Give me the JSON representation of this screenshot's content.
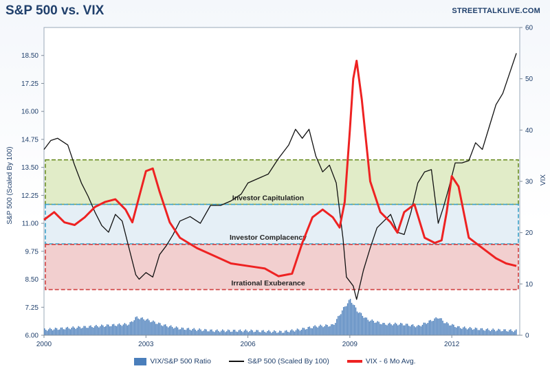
{
  "title": "S&P 500 vs. VIX",
  "brand": "STREETTALKLIVE.COM",
  "chart_data": {
    "type": "line",
    "title": "S&P 500 vs. VIX",
    "ylabel_left": "S&P 500 (Scaled By 100)",
    "ylabel_right": "VIX",
    "xlim": [
      2000,
      2014
    ],
    "ylim_left": [
      6.0,
      19.75
    ],
    "ylim_right": [
      0,
      60
    ],
    "x_ticks": [
      "2000",
      "2003",
      "2006",
      "2009",
      "2012"
    ],
    "y_left_ticks": [
      "6.00",
      "7.25",
      "8.50",
      "9.75",
      "11.00",
      "12.25",
      "13.50",
      "14.75",
      "16.00",
      "17.25",
      "18.50"
    ],
    "y_right_ticks": [
      "0",
      "10",
      "20",
      "30",
      "40",
      "50",
      "60"
    ],
    "legend_position": "bottom",
    "grid": false,
    "zones": [
      {
        "label": "Investor Capitulation",
        "vix_range": [
          25.5,
          34.2
        ],
        "color": "#c8dc9a"
      },
      {
        "label": "Investor Complacency",
        "vix_range": [
          17.8,
          25.5
        ],
        "color": "#cfe2ee"
      },
      {
        "label": "Irrational Exuberance",
        "vix_range": [
          8.9,
          17.7
        ],
        "color": "#e8a8a8"
      }
    ],
    "series": [
      {
        "name": "S&P 500 (Scaled By 100)",
        "axis": "left",
        "color": "#111111",
        "x": [
          2000.0,
          2000.2,
          2000.4,
          2000.7,
          2000.9,
          2001.1,
          2001.3,
          2001.5,
          2001.7,
          2001.9,
          2002.1,
          2002.3,
          2002.5,
          2002.7,
          2002.8,
          2003.0,
          2003.2,
          2003.4,
          2003.6,
          2003.8,
          2004.0,
          2004.3,
          2004.6,
          2004.9,
          2005.2,
          2005.5,
          2005.8,
          2006.0,
          2006.3,
          2006.6,
          2006.9,
          2007.2,
          2007.4,
          2007.6,
          2007.8,
          2008.0,
          2008.2,
          2008.4,
          2008.6,
          2008.8,
          2008.9,
          2009.0,
          2009.1,
          2009.2,
          2009.4,
          2009.6,
          2009.8,
          2010.0,
          2010.2,
          2010.4,
          2010.6,
          2010.8,
          2011.0,
          2011.2,
          2011.4,
          2011.6,
          2011.75,
          2011.9,
          2012.1,
          2012.3,
          2012.5,
          2012.7,
          2012.9,
          2013.1,
          2013.3,
          2013.5,
          2013.7,
          2013.9
        ],
        "values": [
          14.3,
          14.7,
          14.8,
          14.5,
          13.6,
          12.8,
          12.2,
          11.5,
          10.9,
          10.6,
          11.4,
          11.1,
          9.9,
          8.7,
          8.5,
          8.8,
          8.6,
          9.6,
          10.0,
          10.5,
          11.1,
          11.3,
          11.0,
          11.8,
          11.8,
          12.0,
          12.3,
          12.8,
          13.0,
          13.2,
          13.9,
          14.5,
          15.2,
          14.8,
          15.2,
          14.0,
          13.3,
          13.6,
          12.8,
          10.3,
          8.6,
          8.4,
          8.2,
          7.6,
          8.9,
          9.9,
          10.8,
          11.1,
          11.4,
          10.6,
          10.5,
          11.5,
          12.8,
          13.3,
          13.4,
          11.0,
          11.7,
          12.5,
          13.7,
          13.7,
          13.8,
          14.6,
          14.3,
          15.3,
          16.3,
          16.8,
          17.7,
          18.6
        ]
      },
      {
        "name": "VIX - 6 Mo Avg.",
        "axis": "right",
        "color": "#ee2222",
        "x": [
          2000.0,
          2000.3,
          2000.6,
          2000.9,
          2001.2,
          2001.5,
          2001.8,
          2002.1,
          2002.4,
          2002.6,
          2002.8,
          2003.0,
          2003.2,
          2003.4,
          2003.7,
          2004.0,
          2004.5,
          2005.0,
          2005.5,
          2006.0,
          2006.5,
          2006.9,
          2007.3,
          2007.6,
          2007.9,
          2008.2,
          2008.5,
          2008.7,
          2008.85,
          2009.0,
          2009.1,
          2009.2,
          2009.35,
          2009.6,
          2009.9,
          2010.2,
          2010.4,
          2010.6,
          2010.9,
          2011.2,
          2011.5,
          2011.7,
          2011.85,
          2012.0,
          2012.2,
          2012.5,
          2012.9,
          2013.3,
          2013.6,
          2013.9
        ],
        "values": [
          22.5,
          24.0,
          22.0,
          21.5,
          23.0,
          25.0,
          26.0,
          26.5,
          24.5,
          22.0,
          27.0,
          32.0,
          32.5,
          28.0,
          22.0,
          19.0,
          17.0,
          15.5,
          14.0,
          13.5,
          13.0,
          11.5,
          12.0,
          18.0,
          23.0,
          24.5,
          23.0,
          21.0,
          26.0,
          40.0,
          50.0,
          53.5,
          46.0,
          30.0,
          24.0,
          22.0,
          20.0,
          24.0,
          25.5,
          19.0,
          18.0,
          18.5,
          24.0,
          31.0,
          29.0,
          19.0,
          17.0,
          15.0,
          14.0,
          13.5
        ]
      },
      {
        "name": "VIX/S&P 500 Ratio",
        "axis": "left",
        "type": "bar",
        "color": "#4a7ebb",
        "x": [
          2000.0,
          2000.5,
          2001.0,
          2001.5,
          2002.0,
          2002.5,
          2002.7,
          2003.0,
          2003.5,
          2004.0,
          2005.0,
          2006.0,
          2007.0,
          2007.5,
          2008.0,
          2008.5,
          2008.8,
          2009.0,
          2009.2,
          2009.5,
          2010.0,
          2010.5,
          2011.0,
          2011.6,
          2011.8,
          2012.2,
          2013.0,
          2013.9
        ],
        "values": [
          6.25,
          6.3,
          6.35,
          6.4,
          6.45,
          6.5,
          6.8,
          6.7,
          6.45,
          6.3,
          6.2,
          6.2,
          6.15,
          6.25,
          6.4,
          6.45,
          7.2,
          7.6,
          7.1,
          6.7,
          6.5,
          6.5,
          6.4,
          6.8,
          6.55,
          6.35,
          6.25,
          6.2
        ]
      }
    ]
  },
  "legend": {
    "item1": "VIX/S&P 500 Ratio",
    "item2": "S&P 500 (Scaled By 100)",
    "item3": "VIX - 6 Mo Avg."
  }
}
